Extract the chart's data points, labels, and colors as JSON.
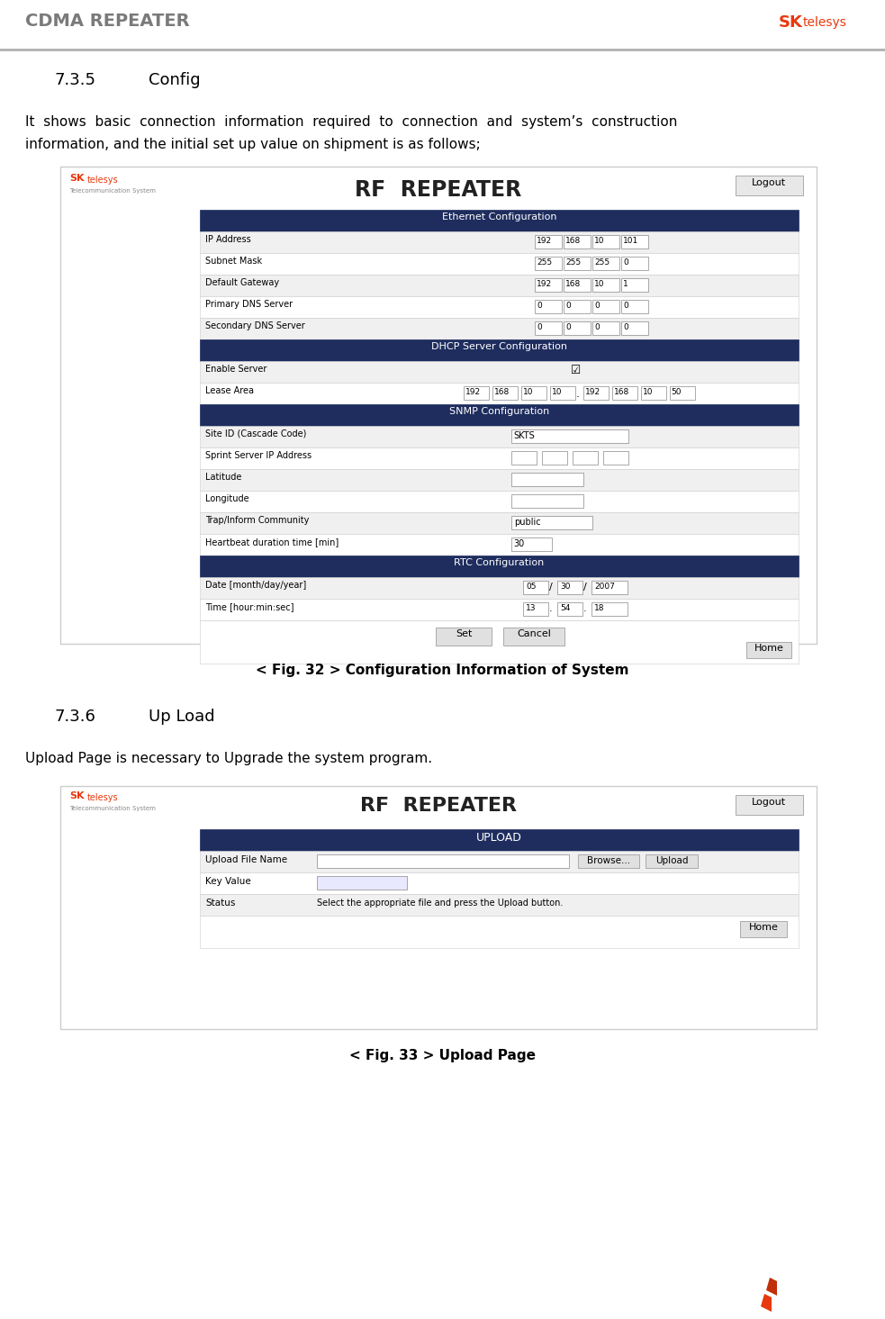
{
  "page_bg": "#ffffff",
  "header_text": "CDMA REPEATER",
  "header_color": "#7a7a7a",
  "header_line_color": "#b0b0b0",
  "logo_sk_color": "#e8380d",
  "section1_num": "7.3.5",
  "section1_title": "Config",
  "section1_body1": "It  shows  basic  connection  information  required  to  connection  and  system’s  construction",
  "section1_body2": "information, and the initial set up value on shipment is as follows;",
  "fig1_caption": "< Fig. 32 > Configuration Information of System",
  "section2_num": "7.3.6",
  "section2_title": "Up Load",
  "section2_body": "Upload Page is necessary to Upgrade the system program.",
  "fig2_caption": "< Fig. 33 > Upload Page",
  "dark_header_color": "#1e2d5e",
  "table_border": "#cccccc",
  "input_border": "#888888",
  "button_color": "#e0e0e0"
}
